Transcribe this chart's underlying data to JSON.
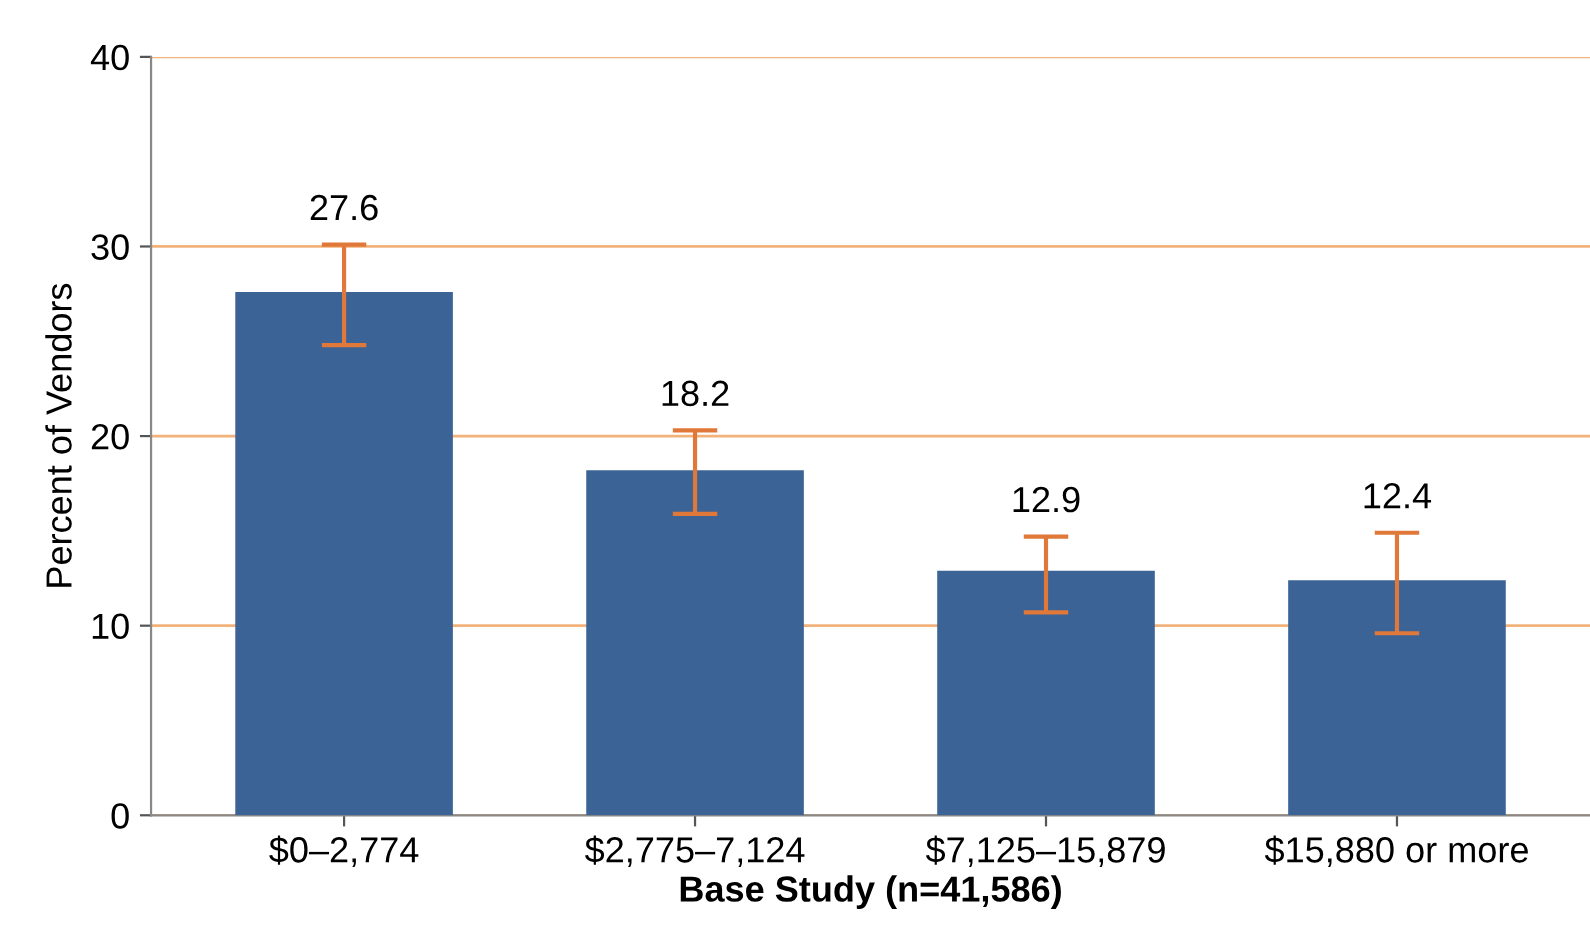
{
  "chart_data": {
    "type": "bar",
    "xlabel": "Base Study (n=41,586)",
    "ylabel": "Percent of Vendors",
    "categories": [
      "$0–2,774",
      "$2,775–7,124",
      "$7,125–15,879",
      "$15,880 or more"
    ],
    "values": [
      27.6,
      18.2,
      12.9,
      12.4
    ],
    "color": "#3c6395",
    "errors": [
      [
        24.8,
        30.1
      ],
      [
        15.9,
        20.3
      ],
      [
        10.7,
        14.7
      ],
      [
        9.6,
        14.9
      ]
    ],
    "data_labels": true,
    "ylim": [
      0,
      40
    ],
    "yticks": [
      0,
      10,
      20,
      30,
      40
    ],
    "grid": "y",
    "legend": false
  }
}
